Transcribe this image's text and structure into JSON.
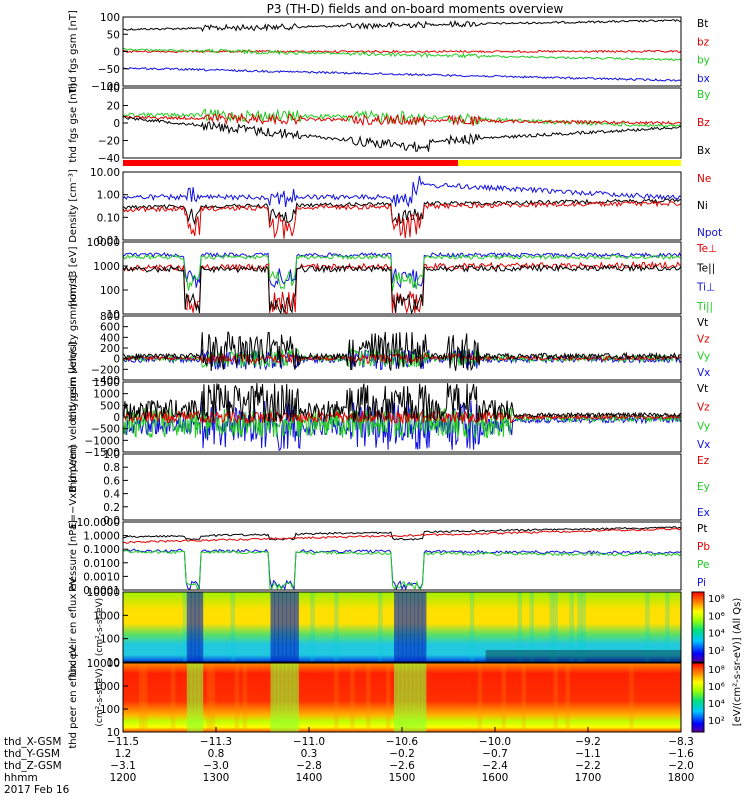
{
  "title": "P3 (TH-D) fields and on-board moments overview",
  "colors": {
    "black": "#000000",
    "red": "#e00000",
    "green": "#22cc22",
    "blue": "#1010e0",
    "yellow": "#ffff00",
    "modeRed": "#ff0000"
  },
  "chart_data": [
    {
      "type": "line",
      "ylabel": "thd fgs gsm [nT]",
      "yticks": [
        "100",
        "50",
        "0",
        "−50",
        "−100"
      ],
      "ylim": [
        -100,
        100
      ],
      "series": [
        {
          "name": "Bt",
          "color": "#000000"
        },
        {
          "name": "bz",
          "color": "#e00000"
        },
        {
          "name": "by",
          "color": "#22cc22"
        },
        {
          "name": "bx",
          "color": "#1010e0"
        }
      ]
    },
    {
      "type": "line",
      "ylabel": "thd fgs gse [nT]",
      "yticks": [
        "40",
        "20",
        "0",
        "−20",
        "−40"
      ],
      "ylim": [
        -50,
        40
      ],
      "series": [
        {
          "name": "By",
          "color": "#22cc22"
        },
        {
          "name": "Bz",
          "color": "#e00000"
        },
        {
          "name": "Bx",
          "color": "#000000"
        }
      ]
    },
    {
      "type": "line",
      "ylabel": "Density [cm⁻³]",
      "scale": "log",
      "yticks": [
        "10.00",
        "1.00",
        "0.10",
        "0.01"
      ],
      "ylim": [
        0.01,
        10
      ],
      "series": [
        {
          "name": "Ne",
          "color": "#e00000"
        },
        {
          "name": "Ni",
          "color": "#000000"
        },
        {
          "name": "Npot",
          "color": "#1010e0"
        }
      ]
    },
    {
      "type": "line",
      "ylabel": "mom t3 [eV]",
      "scale": "log",
      "yticks": [
        "10000",
        "1000",
        "100",
        "10"
      ],
      "ylim": [
        10,
        10000
      ],
      "series": [
        {
          "name": "Te⊥",
          "color": "#e00000"
        },
        {
          "name": "Te||",
          "color": "#000000"
        },
        {
          "name": "Ti⊥",
          "color": "#1010e0"
        },
        {
          "name": "Ti||",
          "color": "#22cc22"
        }
      ]
    },
    {
      "type": "line",
      "ylabel": "thd peim velocity gsm [km/s]",
      "yticks": [
        "800",
        "600",
        "400",
        "200",
        "0",
        "−200",
        "−400"
      ],
      "ylim": [
        -400,
        800
      ],
      "series": [
        {
          "name": "Vt",
          "color": "#000000"
        },
        {
          "name": "Vz",
          "color": "#e00000"
        },
        {
          "name": "Vy",
          "color": "#22cc22"
        },
        {
          "name": "Vx",
          "color": "#1010e0"
        }
      ]
    },
    {
      "type": "line",
      "ylabel": "thd peem velocity gsm [km/s]",
      "yticks": [
        "1500",
        "1000",
        "500",
        "0",
        "−500",
        "−1000",
        "−1500"
      ],
      "ylim": [
        -1500,
        1500
      ],
      "series": [
        {
          "name": "Vt",
          "color": "#000000"
        },
        {
          "name": "Vz",
          "color": "#e00000"
        },
        {
          "name": "Vy",
          "color": "#22cc22"
        },
        {
          "name": "Vx",
          "color": "#1010e0"
        }
      ]
    },
    {
      "type": "line",
      "ylabel": "E=−VxB [mV/m]",
      "yticks": [
        "1.0",
        "0.8",
        "0.6",
        "0.4",
        "0.2",
        "0.0"
      ],
      "ylim": [
        0,
        1
      ],
      "series": [
        {
          "name": "Ez",
          "color": "#e00000"
        },
        {
          "name": "Ey",
          "color": "#22cc22"
        },
        {
          "name": "Ex",
          "color": "#1010e0"
        }
      ]
    },
    {
      "type": "line",
      "ylabel": "Pressure [nPa]",
      "scale": "log",
      "yticks": [
        "10.0000",
        "1.0000",
        "0.1000",
        "0.0100",
        "0.0010",
        "0.0001"
      ],
      "ylim": [
        0.0001,
        10
      ],
      "series": [
        {
          "name": "Pt",
          "color": "#000000"
        },
        {
          "name": "Pb",
          "color": "#e00000"
        },
        {
          "name": "Pe",
          "color": "#22cc22"
        },
        {
          "name": "Pi",
          "color": "#1010e0"
        }
      ]
    },
    {
      "type": "heatmap",
      "ylabel": "thd peir en eflux eV",
      "yunits": "(cm²-s-sr-eV)",
      "yticks": [
        "10000",
        "1000",
        "100",
        "10"
      ],
      "ylim": [
        10,
        10000
      ]
    },
    {
      "type": "heatmap",
      "ylabel": "thd peer en eflux eV",
      "yunits": "(cm²-s-sr-eV)",
      "yticks": [
        "10000",
        "1000",
        "100",
        "10"
      ],
      "ylim": [
        10,
        10000
      ]
    }
  ],
  "colorbar": {
    "label": "[eV/(cm²-s-sr-eV)] (All Qs)",
    "ticks_upper": [
      "10⁸",
      "10⁶",
      "10⁴",
      "10²"
    ],
    "ticks_lower": [
      "10⁸",
      "10⁶",
      "10⁴",
      "10²"
    ]
  },
  "xaxis": {
    "rows": [
      {
        "label": "thd_X-GSM",
        "values": [
          "−11.5",
          "−11.3",
          "−11.0",
          "−10.6",
          "−10.0",
          "−9.2",
          "−8.3"
        ]
      },
      {
        "label": "thd_Y-GSM",
        "values": [
          "1.2",
          "0.8",
          "0.3",
          "−0.2",
          "−0.7",
          "−1.1",
          "−1.6"
        ]
      },
      {
        "label": "thd_Z-GSM",
        "values": [
          "−3.1",
          "−3.0",
          "−2.8",
          "−2.6",
          "−2.4",
          "−2.2",
          "−2.0"
        ]
      },
      {
        "label": "hhmm",
        "values": [
          "1200",
          "1300",
          "1400",
          "1500",
          "1600",
          "1700",
          "1800"
        ]
      }
    ],
    "date": "2017 Feb 16"
  }
}
